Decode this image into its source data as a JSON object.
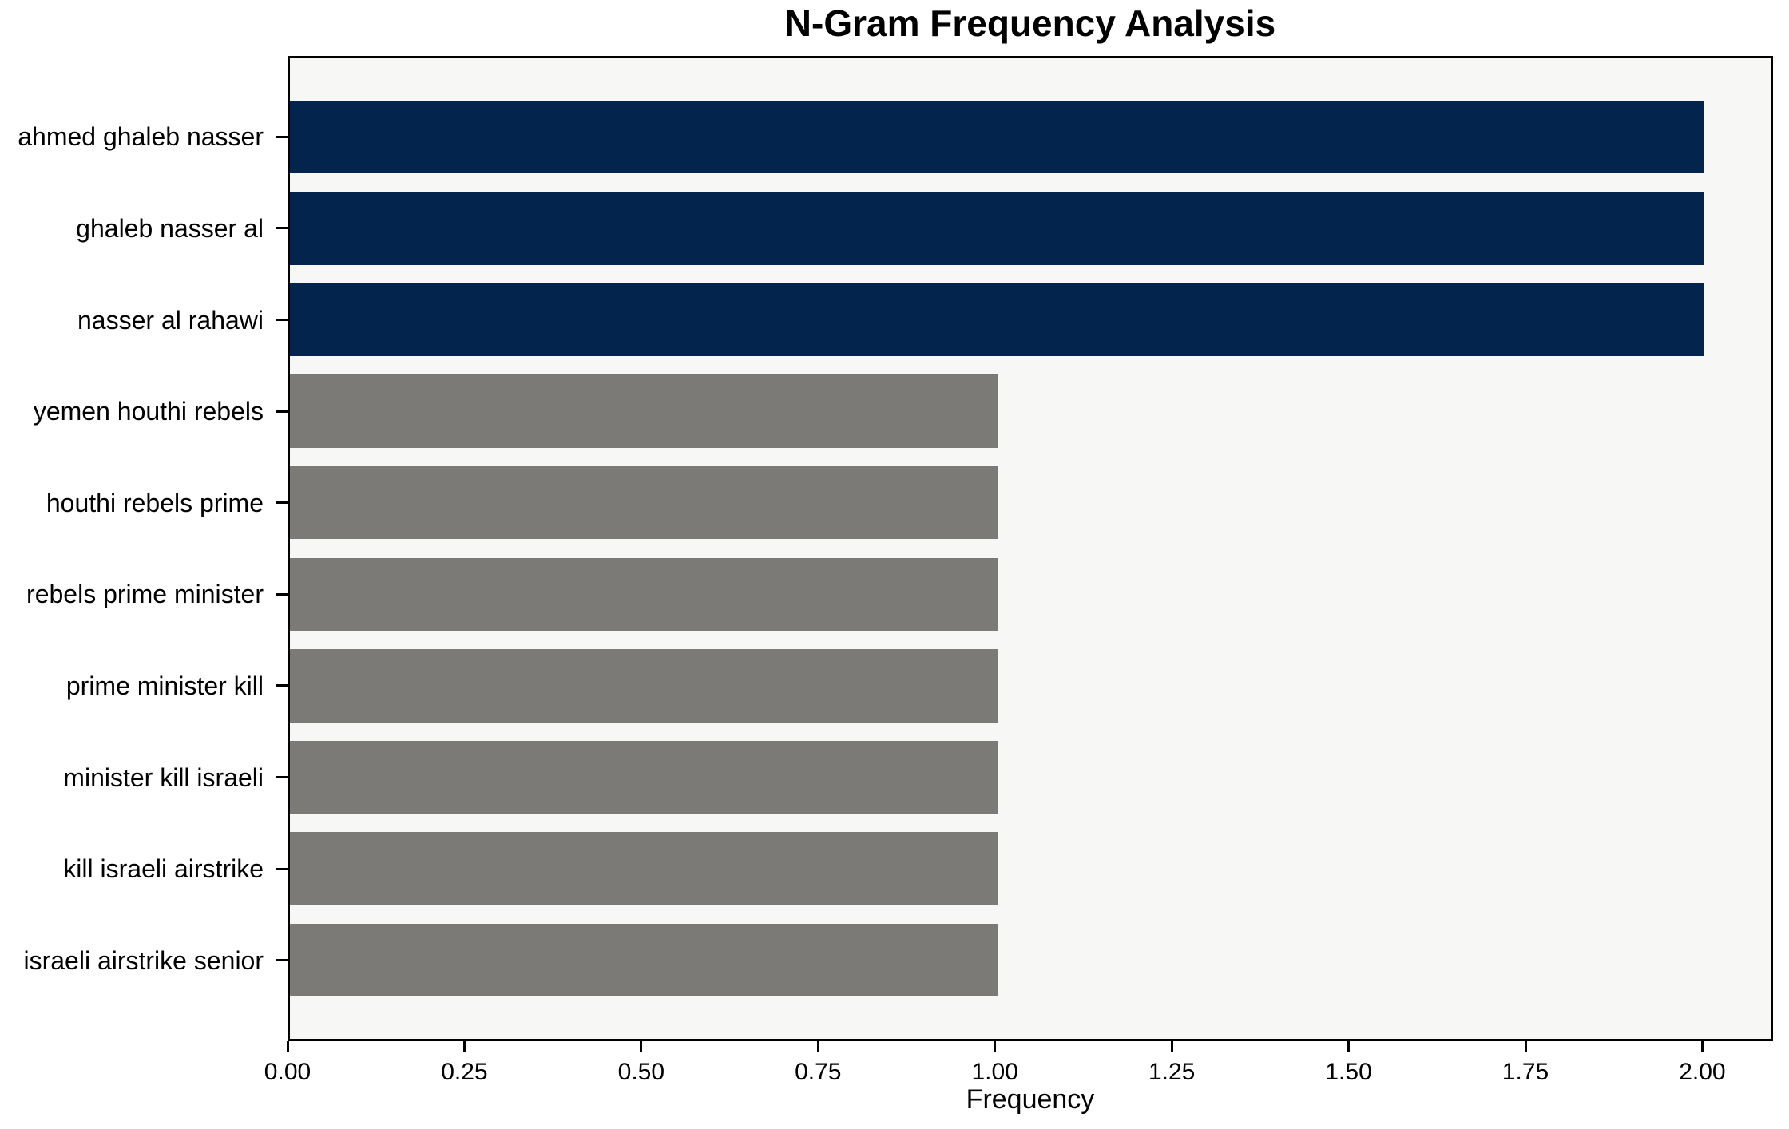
{
  "chart_data": {
    "type": "bar",
    "orientation": "horizontal",
    "title": "N-Gram Frequency Analysis",
    "xlabel": "Frequency",
    "ylabel": "",
    "categories": [
      "ahmed ghaleb nasser",
      "ghaleb nasser al",
      "nasser al rahawi",
      "yemen houthi rebels",
      "houthi rebels prime",
      "rebels prime minister",
      "prime minister kill",
      "minister kill israeli",
      "kill israeli airstrike",
      "israeli airstrike senior"
    ],
    "values": [
      2,
      2,
      2,
      1,
      1,
      1,
      1,
      1,
      1,
      1
    ],
    "bar_colors": [
      "#03254d",
      "#03254d",
      "#03254d",
      "#7b7a76",
      "#7b7a76",
      "#7b7a76",
      "#7b7a76",
      "#7b7a76",
      "#7b7a76",
      "#7b7a76"
    ],
    "xlim": [
      0,
      2.1
    ],
    "xticks": [
      0,
      0.25,
      0.5,
      0.75,
      1.0,
      1.25,
      1.5,
      1.75,
      2.0
    ],
    "xtick_labels": [
      "0.00",
      "0.25",
      "0.50",
      "0.75",
      "1.00",
      "1.25",
      "1.50",
      "1.75",
      "2.00"
    ],
    "grid": false,
    "legend_position": "none",
    "colors": {
      "highlight": "#03254d",
      "default": "#7b7a76",
      "plot_background": "#f7f7f6",
      "figure_background": "#ffffff",
      "axis": "#000000",
      "text": "#000000"
    }
  }
}
